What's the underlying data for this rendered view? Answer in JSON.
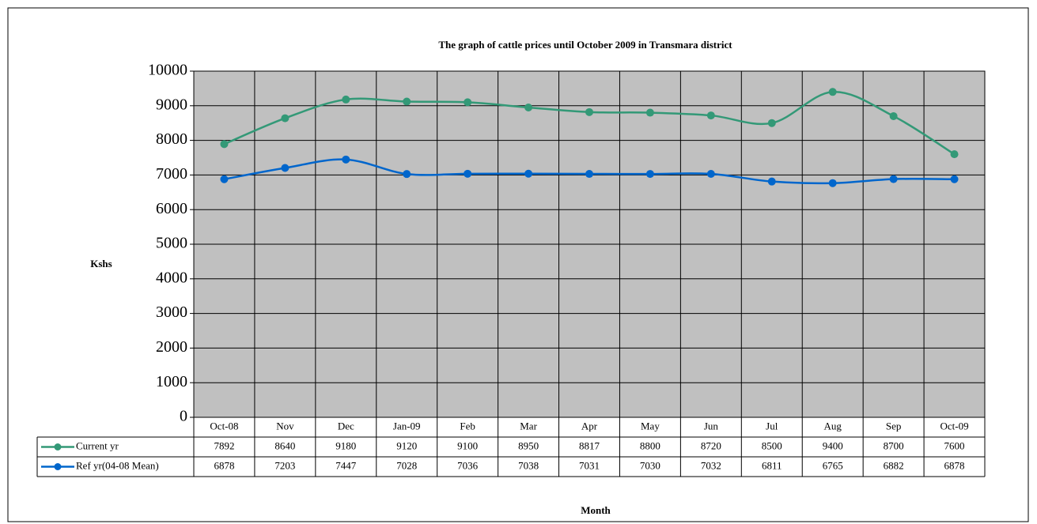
{
  "chart_data": {
    "type": "line",
    "title": "The graph of  cattle prices  until October  2009 in Transmara district",
    "y_label": "Kshs",
    "x_label": "Month",
    "categories": [
      "Oct-08",
      "Nov",
      "Dec",
      "Jan-09",
      "Feb",
      "Mar",
      "Apr",
      "May",
      "Jun",
      "Jul",
      "Aug",
      "Sep",
      "Oct-09"
    ],
    "series": [
      {
        "name": "Current yr",
        "color": "#339977",
        "values": [
          7892,
          8640,
          9180,
          9120,
          9100,
          8950,
          8817,
          8800,
          8720,
          8500,
          9400,
          8700,
          7600
        ]
      },
      {
        "name": "Ref yr(04-08 Mean)",
        "color": "#0066cc",
        "values": [
          6878,
          7203,
          7447,
          7028,
          7036,
          7038,
          7031,
          7030,
          7032,
          6811,
          6765,
          6882,
          6878
        ]
      }
    ],
    "ylim": [
      0,
      10000
    ],
    "yticks": [
      0,
      1000,
      2000,
      3000,
      4000,
      5000,
      6000,
      7000,
      8000,
      9000,
      10000
    ],
    "grid": true,
    "plot_background": "#c0c0c0"
  }
}
